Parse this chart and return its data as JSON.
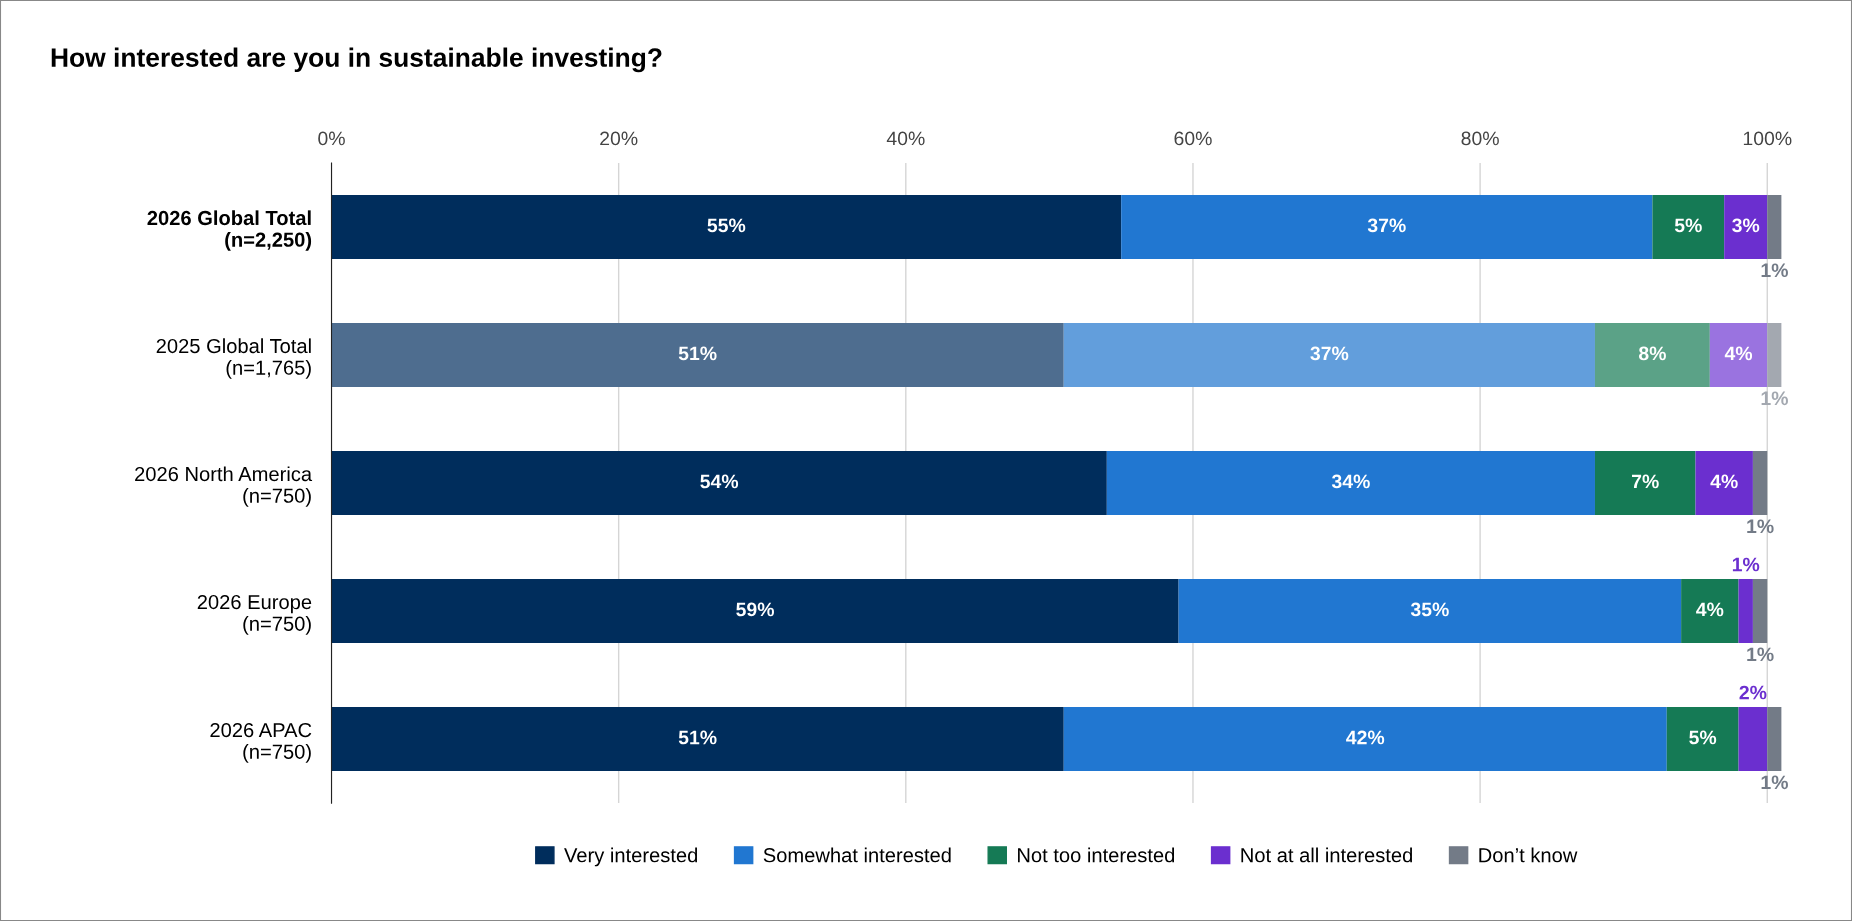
{
  "chart_data": {
    "type": "bar",
    "orientation": "horizontal",
    "stacked": true,
    "title": "How interested are you in sustainable investing?",
    "categories": [
      "2026 Global Total\n(n=2,250)",
      "2025 Global Total\n(n=1,765)",
      "2026 North America\n(n=750)",
      "2026 Europe\n(n=750)",
      "2026 APAC\n(n=750)"
    ],
    "series": [
      {
        "name": "Very interested",
        "color": "#002d5c",
        "colors": [
          "#002d5c",
          "#4e6d8f",
          "#002d5c",
          "#002d5c",
          "#002d5c"
        ],
        "values": [
          55,
          51,
          54,
          59,
          51
        ],
        "value_labels": [
          "55%",
          "51%",
          "54%",
          "59%",
          "51%"
        ]
      },
      {
        "name": "Somewhat interested",
        "color": "#2177d1",
        "colors": [
          "#2177d1",
          "#629edc",
          "#2177d1",
          "#2177d1",
          "#2177d1"
        ],
        "values": [
          37,
          37,
          34,
          35,
          42
        ],
        "value_labels": [
          "37%",
          "37%",
          "34%",
          "35%",
          "42%"
        ]
      },
      {
        "name": "Not too interested",
        "color": "#157a55",
        "colors": [
          "#157a55",
          "#5ba287",
          "#157a55",
          "#157a55",
          "#157a55"
        ],
        "values": [
          5,
          8,
          7,
          4,
          5
        ],
        "value_labels": [
          "5%",
          "8%",
          "7%",
          "4%",
          "5%"
        ]
      },
      {
        "name": "Not at all interested",
        "color": "#6b2fcf",
        "colors": [
          "#6b2fcf",
          "#9a73e0",
          "#6b2fcf",
          "#6b2fcf",
          "#6b2fcf"
        ],
        "values": [
          3,
          4,
          4,
          1,
          2
        ],
        "value_labels": [
          "3%",
          "4%",
          "4%",
          "1%",
          "2%"
        ]
      },
      {
        "name": "Don’t know",
        "color": "#737b87",
        "colors": [
          "#737b87",
          "#a3a8b0",
          "#737b87",
          "#737b87",
          "#737b87"
        ],
        "values": [
          1,
          1,
          1,
          1,
          1
        ],
        "value_labels": [
          "1%",
          "1%",
          "1%",
          "1%",
          "1%"
        ]
      }
    ],
    "xlim": [
      0,
      101
    ],
    "xticks": [
      {
        "value": 0,
        "label": "0%"
      },
      {
        "value": 20,
        "label": "20%"
      },
      {
        "value": 40,
        "label": "40%"
      },
      {
        "value": 60,
        "label": "60%"
      },
      {
        "value": 80,
        "label": "80%"
      },
      {
        "value": 100,
        "label": "100%"
      }
    ],
    "grid": "x",
    "legend": "bottom"
  }
}
